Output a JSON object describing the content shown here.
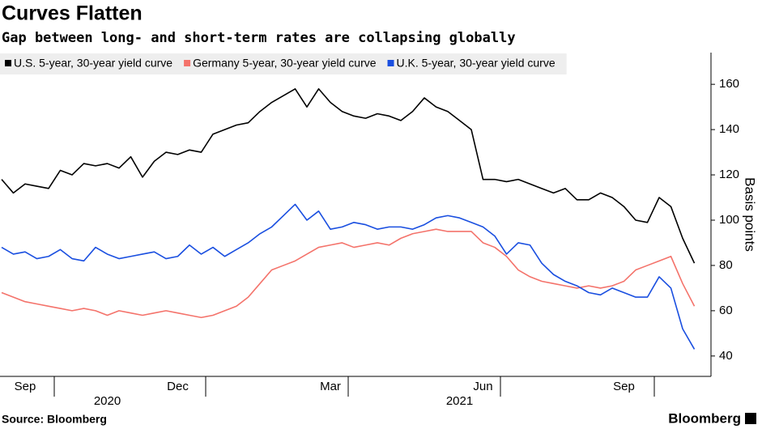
{
  "chart_data": {
    "type": "line",
    "title": "Curves Flatten",
    "subtitle": "Gap between long- and short-term rates are collapsing globally",
    "y_axis_label": "Basis points",
    "source": "Source: Bloomberg",
    "brand": "Bloomberg",
    "categories": [
      null,
      null,
      "Sep",
      null,
      null,
      null,
      null,
      null,
      null,
      null,
      null,
      null,
      null,
      null,
      null,
      "Dec",
      null,
      null,
      null,
      null,
      null,
      null,
      null,
      null,
      null,
      null,
      null,
      null,
      "Mar",
      null,
      null,
      null,
      null,
      null,
      null,
      null,
      null,
      null,
      null,
      null,
      null,
      "Jun",
      null,
      null,
      null,
      null,
      null,
      null,
      null,
      null,
      null,
      null,
      null,
      "Sep",
      null,
      null,
      null,
      null,
      null,
      null
    ],
    "x_year_labels": [
      {
        "value": 9,
        "label": "2020"
      },
      {
        "value": 39,
        "label": "2021"
      }
    ],
    "series": [
      {
        "name": "U.S. 5-year, 30-year yield curve",
        "color": "#000000",
        "values": [
          118,
          112,
          116,
          115,
          114,
          122,
          120,
          125,
          124,
          125,
          123,
          128,
          119,
          126,
          130,
          129,
          131,
          130,
          138,
          140,
          142,
          143,
          148,
          152,
          155,
          158,
          150,
          158,
          152,
          148,
          146,
          145,
          147,
          146,
          144,
          148,
          154,
          150,
          148,
          144,
          140,
          118,
          118,
          117,
          118,
          116,
          114,
          112,
          114,
          109,
          109,
          112,
          110,
          106,
          100,
          99,
          110,
          106,
          92,
          81
        ]
      },
      {
        "name": "Germany 5-year, 30-year yield curve",
        "color": "#f4736b",
        "values": [
          68,
          66,
          64,
          63,
          62,
          61,
          60,
          61,
          60,
          58,
          60,
          59,
          58,
          59,
          60,
          59,
          58,
          57,
          58,
          60,
          62,
          66,
          72,
          78,
          80,
          82,
          85,
          88,
          89,
          90,
          88,
          89,
          90,
          89,
          92,
          94,
          95,
          96,
          95,
          95,
          95,
          90,
          88,
          84,
          78,
          75,
          73,
          72,
          71,
          70,
          71,
          70,
          71,
          73,
          78,
          80,
          82,
          84,
          72,
          62
        ]
      },
      {
        "name": "U.K. 5-year, 30-year yield curve",
        "color": "#1a4fe0",
        "values": [
          88,
          85,
          86,
          83,
          84,
          87,
          83,
          82,
          88,
          85,
          83,
          84,
          85,
          86,
          83,
          84,
          89,
          85,
          88,
          84,
          87,
          90,
          94,
          97,
          102,
          107,
          100,
          104,
          96,
          97,
          99,
          98,
          96,
          97,
          97,
          96,
          98,
          101,
          102,
          101,
          99,
          97,
          93,
          85,
          90,
          89,
          81,
          76,
          73,
          71,
          68,
          67,
          70,
          68,
          66,
          66,
          75,
          70,
          52,
          43
        ]
      }
    ],
    "ylim": [
      31,
      174
    ],
    "yticks": [
      40,
      60,
      80,
      100,
      120,
      140,
      160
    ],
    "legend": "top-left"
  }
}
